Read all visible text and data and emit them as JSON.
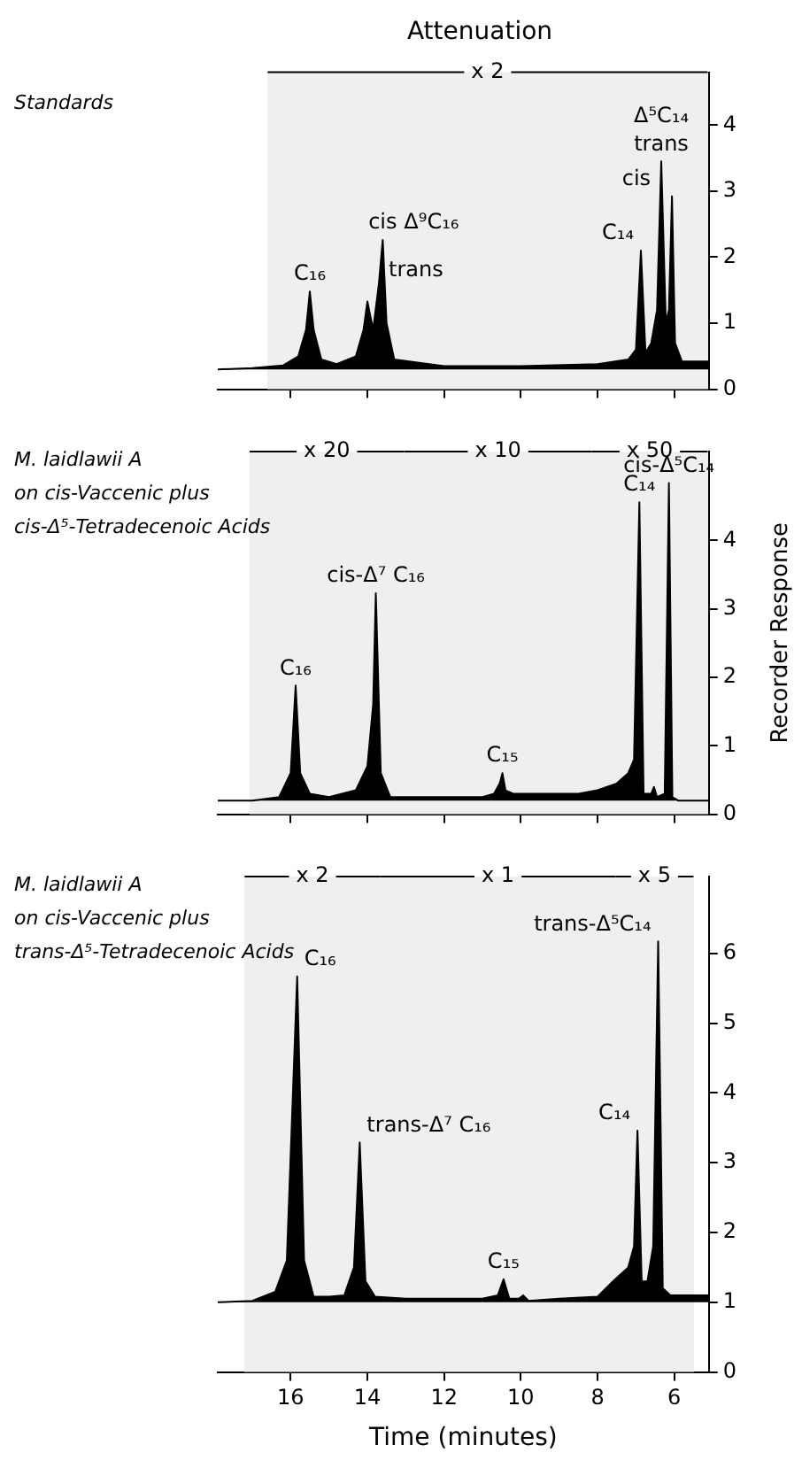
{
  "chart_data": [
    {
      "type": "area",
      "title": "Attenuation",
      "xlim": [
        17.9,
        5.1
      ],
      "xticks": [
        16,
        14,
        12,
        10,
        8,
        6
      ],
      "ylim": [
        0,
        4.8
      ],
      "yticks": [
        0,
        1,
        2,
        3,
        4
      ],
      "tick_labels": "y",
      "grid": false,
      "legend": false,
      "series": [
        {
          "color": "#000000",
          "x": [
            17.9,
            17,
            16.2,
            15.8,
            15.6,
            15.5,
            15.4,
            15.2,
            14.8,
            14.3,
            14.1,
            14.0,
            13.85,
            13.7,
            13.6,
            13.5,
            13.3,
            12,
            10,
            8,
            7.2,
            7.0,
            6.87,
            6.75,
            6.6,
            6.45,
            6.34,
            6.22,
            6.14,
            6.06,
            5.98,
            5.8,
            5.1
          ],
          "values": [
            0.3,
            0.32,
            0.36,
            0.5,
            0.9,
            1.48,
            0.9,
            0.45,
            0.38,
            0.5,
            0.9,
            1.33,
            0.9,
            1.6,
            2.26,
            1.0,
            0.45,
            0.35,
            0.35,
            0.38,
            0.45,
            0.6,
            2.1,
            0.55,
            0.7,
            1.2,
            3.45,
            1.0,
            1.2,
            2.92,
            0.7,
            0.42,
            0.42
          ]
        }
      ],
      "bands": [
        {
          "axis": "x",
          "from": 16.6,
          "to": 5.13,
          "label": "x 2"
        }
      ],
      "annotations": [
        "Standards",
        {
          "text": "C₁₆",
          "x": 15.5,
          "y": 1.48
        },
        {
          "text": "trans",
          "x": 14.0,
          "y": 1.33
        },
        {
          "text": "cis",
          "x": 13.6,
          "y": 2.26
        },
        {
          "text": "Δ⁹C₁₆",
          "x": 13.6,
          "y": 2.26
        },
        {
          "text": "C₁₄",
          "x": 6.87,
          "y": 2.1
        },
        {
          "text": "trans",
          "x": 6.34,
          "y": 3.45
        },
        {
          "text": "cis",
          "x": 6.06,
          "y": 2.92
        },
        {
          "text": "Δ⁵C₁₄",
          "x": 6.34,
          "y": 3.45
        }
      ]
    },
    {
      "type": "area",
      "xlim": [
        17.9,
        5.1
      ],
      "xticks": [
        16,
        14,
        12,
        10,
        8,
        6
      ],
      "ylim": [
        0,
        5.3
      ],
      "yticks": [
        0,
        1,
        2,
        3,
        4
      ],
      "tick_labels": "y",
      "grid": false,
      "legend": false,
      "ylabel": "Recorder Response",
      "series": [
        {
          "color": "#000000",
          "x": [
            17.9,
            17,
            16.3,
            16.0,
            15.87,
            15.75,
            15.5,
            15,
            14.3,
            14.0,
            13.85,
            13.78,
            13.65,
            13.4,
            12.5,
            11,
            10.7,
            10.55,
            10.48,
            10.4,
            10.2,
            9.5,
            8.5,
            8,
            7.5,
            7.2,
            7.05,
            6.91,
            6.8,
            6.6,
            6.53,
            6.45,
            6.25,
            6.14,
            6.05,
            5.9,
            5.1
          ],
          "values": [
            0.2,
            0.2,
            0.25,
            0.6,
            1.88,
            0.6,
            0.3,
            0.25,
            0.35,
            0.7,
            1.6,
            3.23,
            0.6,
            0.25,
            0.25,
            0.25,
            0.3,
            0.45,
            0.6,
            0.35,
            0.3,
            0.3,
            0.3,
            0.35,
            0.45,
            0.6,
            0.8,
            4.56,
            0.3,
            0.3,
            0.4,
            0.25,
            0.3,
            4.84,
            0.25,
            0.2,
            0.2
          ]
        }
      ],
      "bands": [
        {
          "axis": "x",
          "from": 17.07,
          "to": 13.04,
          "label": "x 20"
        },
        {
          "axis": "x",
          "from": 13.04,
          "to": 8.15,
          "label": "x 10"
        },
        {
          "axis": "x",
          "from": 8.15,
          "to": 5.13,
          "label": "x 50"
        }
      ],
      "annotations": [
        "M. laidlawii A",
        "on cis-Vaccenic plus",
        "cis-Δ⁵-Tetradecenoic Acids",
        {
          "text": "C₁₆",
          "x": 15.87,
          "y": 1.88
        },
        {
          "text": "cis-Δ⁷ C₁₆",
          "x": 13.78,
          "y": 3.23
        },
        {
          "text": "C₁₅",
          "x": 10.48,
          "y": 0.6
        },
        {
          "text": "C₁₄",
          "x": 6.91,
          "y": 4.56
        },
        {
          "text": "cis-Δ⁵C₁₄",
          "x": 6.14,
          "y": 4.84
        }
      ]
    },
    {
      "type": "area",
      "xlabel": "Time (minutes)",
      "xlim": [
        17.9,
        5.1
      ],
      "xticks": [
        16,
        14,
        12,
        10,
        8,
        6
      ],
      "ylim": [
        0,
        7.1
      ],
      "yticks": [
        0,
        1,
        2,
        3,
        4,
        5,
        6
      ],
      "grid": false,
      "legend": false,
      "series": [
        {
          "color": "#000000",
          "x": [
            17.9,
            17,
            16.4,
            16.1,
            15.83,
            15.65,
            15.4,
            15,
            14.6,
            14.35,
            14.2,
            14.05,
            13.8,
            13,
            11,
            10.6,
            10.45,
            10.3,
            10.05,
            9.94,
            9.8,
            9,
            8,
            7.6,
            7.2,
            7.05,
            6.96,
            6.85,
            6.7,
            6.55,
            6.42,
            6.3,
            6.1,
            5.1
          ],
          "values": [
            1,
            1.02,
            1.15,
            1.6,
            5.67,
            1.6,
            1.08,
            1.08,
            1.1,
            1.5,
            3.29,
            1.3,
            1.08,
            1.05,
            1.05,
            1.1,
            1.33,
            1.05,
            1.05,
            1.1,
            1.02,
            1.05,
            1.08,
            1.3,
            1.5,
            1.8,
            3.46,
            1.3,
            1.3,
            1.8,
            6.17,
            1.2,
            1.1,
            1.1
          ]
        }
      ],
      "bands": [
        {
          "axis": "x",
          "from": 17.2,
          "to": 13.66,
          "label": "x 2"
        },
        {
          "axis": "x",
          "from": 13.66,
          "to": 7.53,
          "label": "x 1"
        },
        {
          "axis": "x",
          "from": 7.53,
          "to": 5.5,
          "label": "x 5"
        }
      ],
      "annotations": [
        "M. laidlawii A",
        "on cis-Vaccenic plus",
        "trans-Δ⁵-Tetradecenoic Acids",
        {
          "text": "C₁₆",
          "x": 15.83,
          "y": 5.67
        },
        {
          "text": "trans-Δ⁷ C₁₆",
          "x": 14.2,
          "y": 3.29
        },
        {
          "text": "C₁₅",
          "x": 10.45,
          "y": 1.33
        },
        {
          "text": "C₁₄",
          "x": 6.96,
          "y": 3.46
        },
        {
          "text": "trans-Δ⁵C₁₄",
          "x": 6.42,
          "y": 6.17
        }
      ]
    }
  ]
}
